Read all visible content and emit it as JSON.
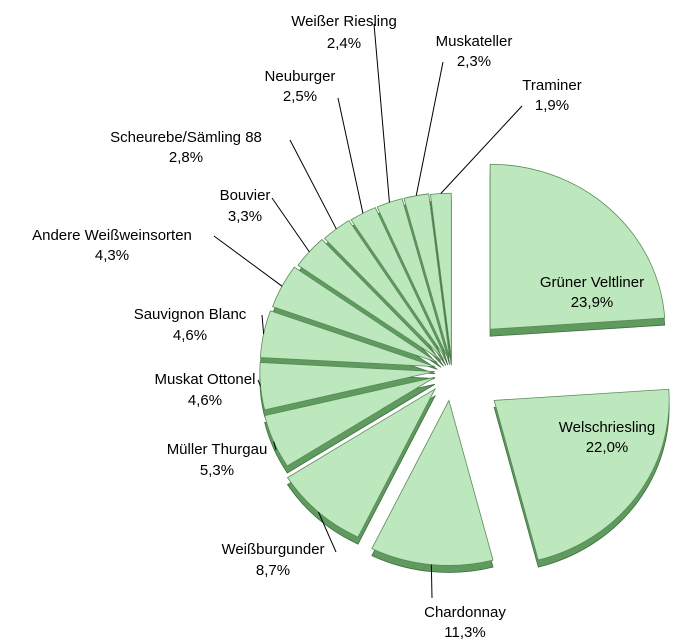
{
  "chart_data": {
    "type": "pie",
    "categories": [
      "Grüner Veltliner",
      "Welschriesling",
      "Chardonnay",
      "Weißburgunder",
      "Müller Thurgau",
      "Muskat Ottonel",
      "Sauvignon Blanc",
      "Andere Weißweinsorten",
      "Bouvier",
      "Scheurebe/Sämling 88",
      "Neuburger",
      "Weißer Riesling",
      "Muskateller",
      "Traminer"
    ],
    "values": [
      23.9,
      22.0,
      11.3,
      8.7,
      5.3,
      4.6,
      4.6,
      4.3,
      3.3,
      2.8,
      2.5,
      2.4,
      2.3,
      1.9
    ],
    "value_labels": [
      "23,9%",
      "22,0%",
      "11,3%",
      "8,7%",
      "5,3%",
      "4,6%",
      "4,6%",
      "4,3%",
      "3,3%",
      "2,8%",
      "2,5%",
      "2,4%",
      "2,3%",
      "1,9%"
    ],
    "color": "#bde8bd"
  }
}
